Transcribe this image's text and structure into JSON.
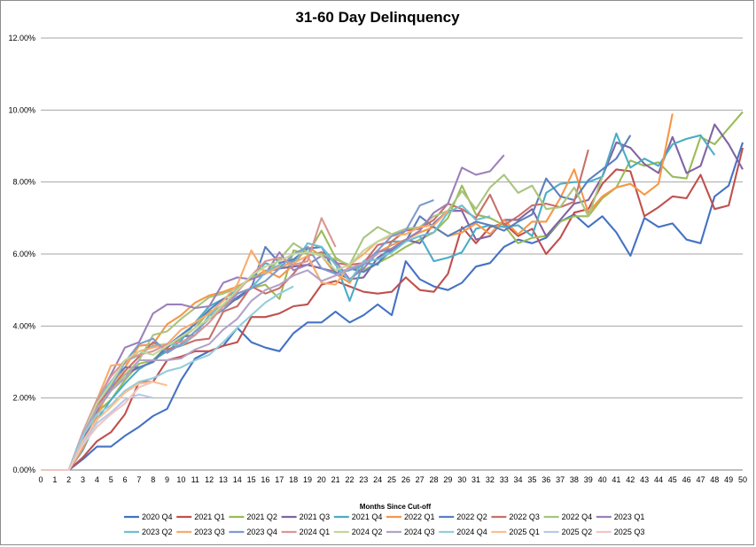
{
  "chart_data": {
    "type": "line",
    "title": "31-60 Day Delinquency",
    "xlabel": "Months Since Cut-off",
    "ylabel": "",
    "ylim": [
      0,
      12
    ],
    "xlim": [
      0,
      50
    ],
    "y_ticks": [
      "0.00%",
      "2.00%",
      "4.00%",
      "6.00%",
      "8.00%",
      "10.00%",
      "12.00%"
    ],
    "y_tick_values": [
      0,
      2,
      4,
      6,
      8,
      10,
      12
    ],
    "x_ticks": [
      "0",
      "1",
      "2",
      "3",
      "4",
      "5",
      "6",
      "7",
      "8",
      "9",
      "10",
      "11",
      "12",
      "13",
      "14",
      "15",
      "16",
      "17",
      "18",
      "19",
      "20",
      "21",
      "22",
      "23",
      "24",
      "25",
      "26",
      "27",
      "28",
      "29",
      "30",
      "31",
      "32",
      "33",
      "34",
      "35",
      "36",
      "37",
      "38",
      "39",
      "40",
      "41",
      "42",
      "43",
      "44",
      "45",
      "46",
      "47",
      "48",
      "49",
      "50"
    ],
    "grid": "horizontal",
    "legend_position": "bottom",
    "series": [
      {
        "name": "2020 Q4",
        "color": "#4472c4",
        "values": [
          0,
          0,
          0,
          0.3,
          0.65,
          0.65,
          0.95,
          1.2,
          1.5,
          1.7,
          2.5,
          3.1,
          3.3,
          3.45,
          3.95,
          3.55,
          3.4,
          3.3,
          3.8,
          4.1,
          4.1,
          4.4,
          4.1,
          4.3,
          4.6,
          4.3,
          5.8,
          5.3,
          5.1,
          5.0,
          5.2,
          5.65,
          5.75,
          6.2,
          6.4,
          6.3,
          6.45,
          6.9,
          7.1,
          6.75,
          7.05,
          6.6,
          5.95,
          7.0,
          6.75,
          6.85,
          6.4,
          6.3,
          7.6,
          7.9,
          9.1
        ]
      },
      {
        "name": "2021 Q1",
        "color": "#c0504d",
        "values": [
          0,
          0,
          0,
          0.35,
          0.8,
          1.05,
          1.55,
          2.45,
          2.45,
          3.05,
          3.15,
          3.3,
          3.3,
          3.45,
          3.55,
          4.25,
          4.25,
          4.35,
          4.55,
          4.6,
          5.15,
          5.25,
          5.1,
          4.95,
          4.9,
          4.95,
          5.35,
          5.0,
          4.95,
          5.45,
          6.75,
          6.3,
          6.75,
          6.85,
          6.5,
          6.7,
          6.0,
          6.45,
          7.15,
          7.25,
          7.95,
          8.35,
          8.3,
          7.05,
          7.3,
          7.6,
          7.55,
          8.2,
          7.25,
          7.35,
          8.95
        ]
      },
      {
        "name": "2021 Q2",
        "color": "#9bbb59",
        "values": [
          0,
          0,
          0,
          0.8,
          1.6,
          1.95,
          2.5,
          2.95,
          3.05,
          3.45,
          3.65,
          3.95,
          4.4,
          4.55,
          4.75,
          5.05,
          5.15,
          4.75,
          6.1,
          6.0,
          6.65,
          5.9,
          5.65,
          5.55,
          5.75,
          5.95,
          6.2,
          6.4,
          6.6,
          7.0,
          7.9,
          7.1,
          7.0,
          6.8,
          6.3,
          6.45,
          6.5,
          6.9,
          7.05,
          7.05,
          7.55,
          7.85,
          8.6,
          8.45,
          8.55,
          8.15,
          8.1,
          9.25,
          9.05,
          9.5,
          9.95
        ]
      },
      {
        "name": "2021 Q3",
        "color": "#8064a2",
        "values": [
          0,
          0,
          0,
          0.8,
          1.65,
          2.2,
          2.65,
          2.85,
          3.0,
          3.4,
          3.7,
          3.75,
          4.3,
          4.45,
          4.8,
          5.05,
          5.5,
          5.6,
          5.65,
          5.7,
          5.6,
          5.5,
          5.3,
          5.35,
          5.9,
          6.15,
          6.4,
          6.3,
          6.85,
          7.2,
          7.2,
          6.4,
          6.5,
          6.95,
          6.95,
          7.25,
          6.5,
          6.95,
          7.4,
          7.5,
          8.15,
          9.1,
          8.95,
          8.5,
          8.25,
          9.25,
          8.25,
          8.45,
          9.6,
          9.05,
          8.35
        ]
      },
      {
        "name": "2021 Q4",
        "color": "#4bacc6",
        "values": [
          0,
          0,
          0,
          0.55,
          1.4,
          1.95,
          2.4,
          2.8,
          3.05,
          3.3,
          3.6,
          4.1,
          4.55,
          4.75,
          5.0,
          5.35,
          5.75,
          5.6,
          5.8,
          6.15,
          6.2,
          5.75,
          4.7,
          5.75,
          5.7,
          6.35,
          6.35,
          6.5,
          5.8,
          5.9,
          6.05,
          6.7,
          6.8,
          6.75,
          6.8,
          6.5,
          7.7,
          7.95,
          8.0,
          8.0,
          8.15,
          9.35,
          8.4,
          8.65,
          8.45,
          9.05,
          9.2,
          9.3,
          8.75
        ]
      },
      {
        "name": "2022 Q1",
        "color": "#f79646",
        "values": [
          0,
          0,
          0,
          0.6,
          1.5,
          2.35,
          2.85,
          3.45,
          3.5,
          4.05,
          4.3,
          4.65,
          4.85,
          4.95,
          5.1,
          5.3,
          5.55,
          5.35,
          5.7,
          6.2,
          5.95,
          5.45,
          5.2,
          5.8,
          6.05,
          6.25,
          6.4,
          6.6,
          6.75,
          6.5,
          6.6,
          6.85,
          6.55,
          6.95,
          6.55,
          6.9,
          6.9,
          7.55,
          8.35,
          7.15,
          7.6,
          7.85,
          7.95,
          7.65,
          7.95,
          9.9
        ]
      },
      {
        "name": "2022 Q2",
        "color": "#5b7fbd",
        "values": [
          0,
          0,
          0,
          1.0,
          1.95,
          2.45,
          2.85,
          2.85,
          3.0,
          3.45,
          3.75,
          4.05,
          4.45,
          4.75,
          4.75,
          5.05,
          6.2,
          5.75,
          5.85,
          6.15,
          6.2,
          5.45,
          5.6,
          5.5,
          5.75,
          6.1,
          6.35,
          7.05,
          6.75,
          6.5,
          6.7,
          6.9,
          6.8,
          6.65,
          6.9,
          7.1,
          8.1,
          7.6,
          7.5,
          8.05,
          8.35,
          8.65,
          9.3
        ]
      },
      {
        "name": "2022 Q3",
        "color": "#c87069",
        "values": [
          0,
          0,
          0,
          0.95,
          1.8,
          2.25,
          2.75,
          3.15,
          3.55,
          3.35,
          3.45,
          3.6,
          3.65,
          4.4,
          4.55,
          5.1,
          4.9,
          5.05,
          5.45,
          5.95,
          6.05,
          5.75,
          5.7,
          5.75,
          6.25,
          6.35,
          6.65,
          6.7,
          6.95,
          7.4,
          7.25,
          7.0,
          7.65,
          6.8,
          7.05,
          7.35,
          7.4,
          7.3,
          7.45,
          8.9
        ]
      },
      {
        "name": "2022 Q4",
        "color": "#a9c47f",
        "values": [
          0,
          0,
          0,
          0.95,
          1.7,
          2.2,
          2.65,
          3.05,
          3.75,
          3.85,
          4.2,
          4.5,
          4.8,
          4.9,
          5.05,
          5.35,
          5.45,
          5.85,
          6.3,
          6.05,
          6.0,
          5.85,
          5.7,
          6.45,
          6.75,
          6.55,
          6.7,
          6.75,
          7.05,
          7.2,
          7.75,
          7.25,
          7.85,
          8.2,
          7.7,
          7.9,
          7.25,
          7.3,
          7.85,
          7.05,
          8.15
        ]
      },
      {
        "name": "2023 Q1",
        "color": "#9b80b9",
        "values": [
          0,
          0,
          0,
          1.0,
          1.9,
          2.65,
          3.4,
          3.55,
          4.35,
          4.6,
          4.6,
          4.5,
          4.55,
          5.2,
          5.35,
          5.3,
          5.45,
          6.05,
          5.55,
          5.7,
          5.95,
          5.8,
          5.3,
          5.6,
          6.05,
          6.15,
          6.4,
          6.65,
          7.15,
          7.4,
          8.4,
          8.2,
          8.3,
          8.75
        ]
      },
      {
        "name": "2023 Q2",
        "color": "#6fbfd2",
        "values": [
          0,
          0,
          0,
          1.05,
          1.95,
          2.45,
          3.0,
          3.2,
          3.45,
          3.5,
          3.45,
          3.75,
          4.3,
          4.6,
          4.9,
          5.05,
          5.5,
          5.7,
          5.7,
          6.3,
          6.2,
          5.7,
          5.25,
          5.8,
          5.85,
          6.05,
          6.35,
          6.5,
          6.6,
          7.15,
          7.35,
          6.95,
          7.05
        ]
      },
      {
        "name": "2023 Q3",
        "color": "#f9ab6b",
        "values": [
          0,
          0,
          0,
          1.05,
          1.95,
          2.9,
          2.95,
          3.3,
          3.4,
          3.5,
          3.9,
          4.1,
          4.35,
          4.7,
          5.15,
          6.1,
          5.45,
          5.65,
          5.75,
          5.95,
          5.2,
          5.15,
          5.7,
          6.0,
          6.35,
          6.5,
          6.55,
          6.75,
          6.8,
          7.2
        ]
      },
      {
        "name": "2023 Q4",
        "color": "#7e9bcf",
        "values": [
          0,
          0,
          0,
          1.0,
          1.9,
          2.3,
          3.0,
          3.5,
          3.65,
          3.25,
          3.5,
          3.85,
          4.2,
          4.45,
          4.9,
          5.05,
          5.25,
          5.6,
          6.0,
          6.2,
          5.6,
          5.45,
          5.55,
          5.7,
          6.1,
          6.5,
          6.65,
          7.35,
          7.5
        ]
      },
      {
        "name": "2024 Q1",
        "color": "#d99694",
        "values": [
          0,
          0,
          0,
          1.05,
          1.95,
          2.6,
          3.05,
          3.2,
          3.3,
          3.5,
          3.55,
          3.75,
          4.1,
          4.55,
          4.95,
          5.4,
          5.8,
          5.9,
          5.7,
          5.8,
          7.0,
          6.2
        ]
      },
      {
        "name": "2024 Q2",
        "color": "#c3d69b",
        "values": [
          0,
          0,
          0,
          1.0,
          1.85,
          2.4,
          3.05,
          3.3,
          3.2,
          3.45,
          3.7,
          3.95,
          4.2,
          4.6,
          5.0,
          5.4,
          5.65,
          5.8,
          6.0,
          6.05,
          5.95,
          5.55,
          5.7,
          6.1,
          6.35,
          6.55
        ]
      },
      {
        "name": "2024 Q3",
        "color": "#b3a2c7",
        "values": [
          0,
          0,
          0,
          1.0,
          1.7,
          2.2,
          2.55,
          3.05,
          3.05,
          3.05,
          3.1,
          3.35,
          3.5,
          3.9,
          4.2,
          4.7,
          5.0,
          5.15,
          5.4,
          5.55,
          5.25,
          5.4,
          5.6,
          5.75,
          6.0
        ]
      },
      {
        "name": "2024 Q4",
        "color": "#92cddc",
        "values": [
          0,
          0,
          0,
          0.95,
          1.55,
          1.8,
          2.2,
          2.45,
          2.55,
          2.75,
          2.85,
          3.05,
          3.2,
          3.55,
          3.95,
          4.3,
          4.65,
          4.9,
          5.1
        ]
      },
      {
        "name": "2025 Q1",
        "color": "#fac090",
        "values": [
          0,
          0,
          0,
          0.8,
          1.4,
          1.75,
          2.15,
          2.4,
          2.45,
          2.35
        ]
      },
      {
        "name": "2025 Q2",
        "color": "#b7c9e8",
        "values": [
          0,
          0,
          0,
          0.75,
          1.3,
          1.6,
          1.95,
          2.1,
          2.0
        ]
      },
      {
        "name": "2025 Q3",
        "color": "#f2c4c2",
        "values": [
          0,
          0,
          0,
          0.7,
          1.2,
          1.55,
          1.85,
          2.3,
          2.45
        ]
      }
    ]
  }
}
